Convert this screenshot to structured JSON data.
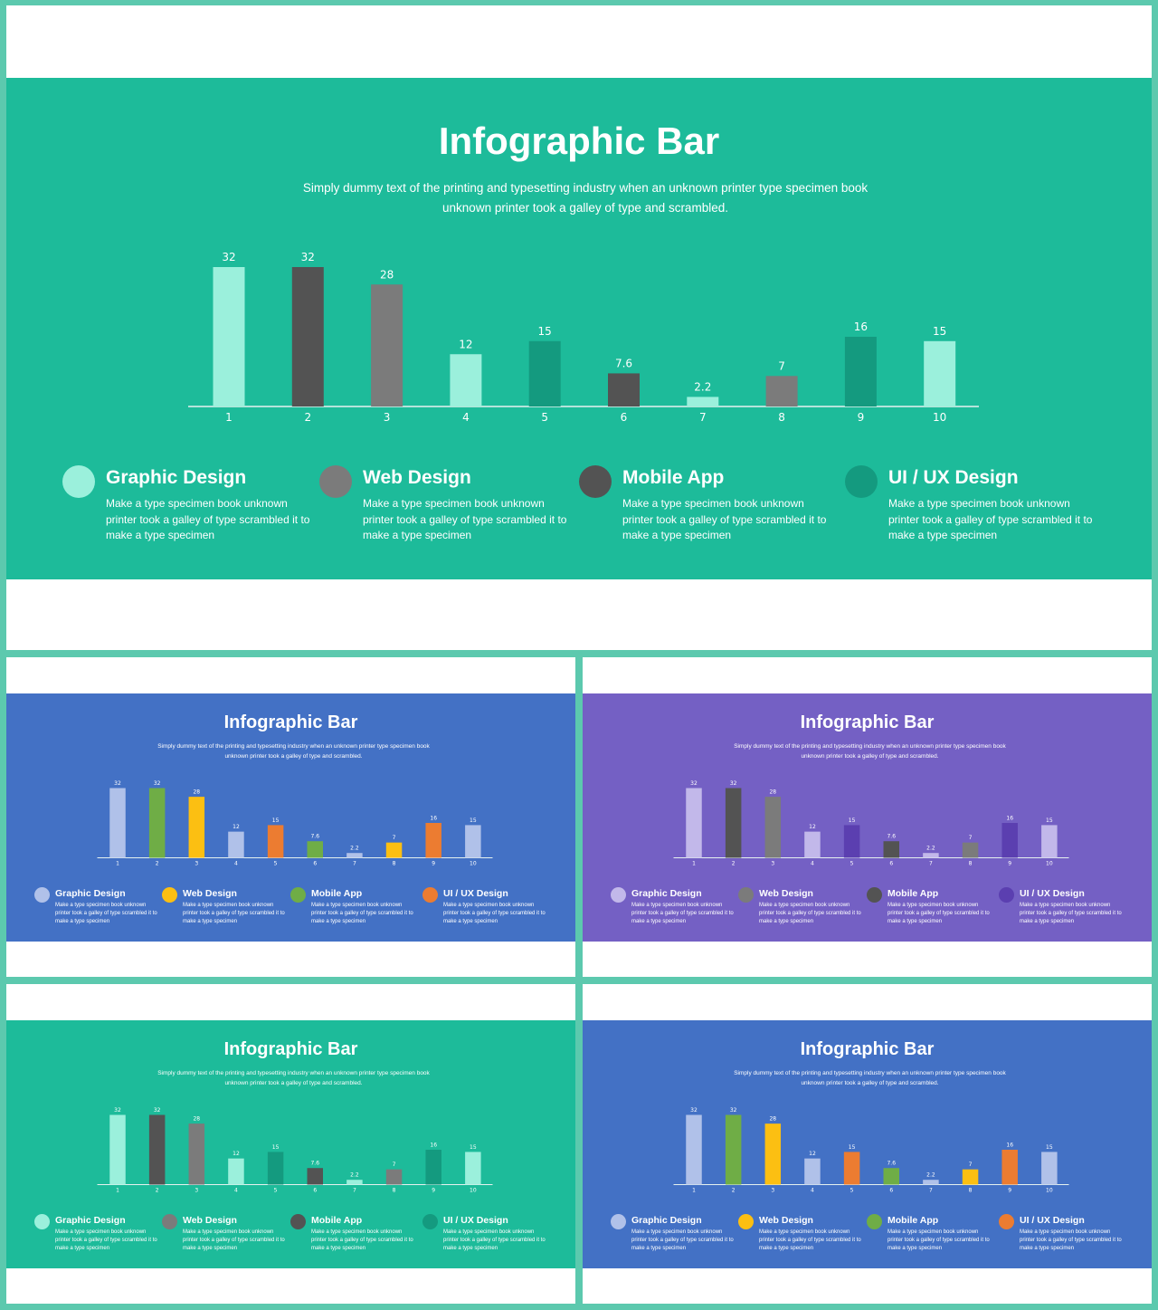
{
  "slides": [
    {
      "title": "Infographic Bar",
      "subtitle": "Simply dummy text of the printing and typesetting industry when an unknown printer type specimen book unknown printer took a galley of type and scrambled.",
      "background": "#1dbb9a",
      "legend": [
        {
          "title": "Graphic Design",
          "text": "Make a type specimen book unknown printer took a galley of type scrambled it to make a type specimen",
          "color": "#9bf0dc"
        },
        {
          "title": "Web Design",
          "text": "Make a type specimen book unknown printer took a galley of type scrambled it to make a type specimen",
          "color": "#7b7b7b"
        },
        {
          "title": "Mobile App",
          "text": "Make a type specimen book unknown printer took a galley of type scrambled it to make a type specimen",
          "color": "#535353"
        },
        {
          "title": "UI / UX Design",
          "text": "Make a type specimen book unknown printer took a galley of type scrambled it to make a type specimen",
          "color": "#149a7f"
        }
      ]
    },
    {
      "title": "Infographic Bar",
      "subtitle": "Simply dummy text of the printing and typesetting industry when an unknown printer type specimen book unknown printer took a galley of type and scrambled.",
      "background": "#4371c5",
      "legend": [
        {
          "title": "Graphic Design",
          "text": "Make a type specimen book unknown printer took a galley of type scrambled it to make a type specimen",
          "color": "#b0c1e9"
        },
        {
          "title": "Web Design",
          "text": "Make a type specimen book unknown printer took a galley of type scrambled it to make a type specimen",
          "color": "#fcbf12"
        },
        {
          "title": "Mobile App",
          "text": "Make a type specimen book unknown printer took a galley of type scrambled it to make a type specimen",
          "color": "#6fad46"
        },
        {
          "title": "UI / UX Design",
          "text": "Make a type specimen book unknown printer took a galley of type scrambled it to make a type specimen",
          "color": "#ec7c31"
        }
      ]
    },
    {
      "title": "Infographic Bar",
      "subtitle": "Simply dummy text of the printing and typesetting industry when an unknown printer type specimen book unknown printer took a galley of type and scrambled.",
      "background": "#7460c4",
      "legend": [
        {
          "title": "Graphic Design",
          "text": "Make a type specimen book unknown printer took a galley of type scrambled it to make a type specimen",
          "color": "#c2b8ea"
        },
        {
          "title": "Web Design",
          "text": "Make a type specimen book unknown printer took a galley of type scrambled it to make a type specimen",
          "color": "#7b7b7b"
        },
        {
          "title": "Mobile App",
          "text": "Make a type specimen book unknown printer took a galley of type scrambled it to make a type specimen",
          "color": "#535353"
        },
        {
          "title": "UI / UX Design",
          "text": "Make a type specimen book unknown printer took a galley of type scrambled it to make a type specimen",
          "color": "#5b3fb0"
        }
      ]
    },
    {
      "title": "Infographic Bar",
      "subtitle": "Simply dummy text of the printing and typesetting industry when an unknown printer type specimen book unknown printer took a galley of type and scrambled.",
      "background": "#1dbb9a",
      "legend": [
        {
          "title": "Graphic Design",
          "text": "Make a type specimen book unknown printer took a galley of type scrambled it to make a type specimen",
          "color": "#9bf0dc"
        },
        {
          "title": "Web Design",
          "text": "Make a type specimen book unknown printer took a galley of type scrambled it to make a type specimen",
          "color": "#7b7b7b"
        },
        {
          "title": "Mobile App",
          "text": "Make a type specimen book unknown printer took a galley of type scrambled it to make a type specimen",
          "color": "#535353"
        },
        {
          "title": "UI / UX Design",
          "text": "Make a type specimen book unknown printer took a galley of type scrambled it to make a type specimen",
          "color": "#149a7f"
        }
      ]
    },
    {
      "title": "Infographic Bar",
      "subtitle": "Simply dummy text of the printing and typesetting industry when an unknown printer type specimen book unknown printer took a galley of type and scrambled.",
      "background": "#4371c5",
      "legend": [
        {
          "title": "Graphic Design",
          "text": "Make a type specimen book unknown printer took a galley of type scrambled it to make a type specimen",
          "color": "#b0c1e9"
        },
        {
          "title": "Web Design",
          "text": "Make a type specimen book unknown printer took a galley of type scrambled it to make a type specimen",
          "color": "#fcbf12"
        },
        {
          "title": "Mobile App",
          "text": "Make a type specimen book unknown printer took a galley of type scrambled it to make a type specimen",
          "color": "#6fad46"
        },
        {
          "title": "UI / UX Design",
          "text": "Make a type specimen book unknown printer took a galley of type scrambled it to make a type specimen",
          "color": "#ec7c31"
        }
      ]
    }
  ],
  "chart_data": [
    {
      "type": "bar",
      "categories": [
        "1",
        "2",
        "3",
        "4",
        "5",
        "6",
        "7",
        "8",
        "9",
        "10"
      ],
      "values": [
        32,
        32,
        28,
        12,
        15,
        7.6,
        2.2,
        7,
        16,
        15
      ],
      "data_labels": [
        "32",
        "32",
        "28",
        "12",
        "15",
        "7.6",
        "2.2",
        "7",
        "16",
        "15"
      ],
      "colors": [
        "#9bf0dc",
        "#535353",
        "#7b7b7b",
        "#9bf0dc",
        "#149a7f",
        "#535353",
        "#9bf0dc",
        "#7b7b7b",
        "#149a7f",
        "#9bf0dc"
      ],
      "ylim": [
        0,
        32
      ],
      "grid": false
    },
    {
      "type": "bar",
      "categories": [
        "1",
        "2",
        "3",
        "4",
        "5",
        "6",
        "7",
        "8",
        "9",
        "10"
      ],
      "values": [
        32,
        32,
        28,
        12,
        15,
        7.6,
        2.2,
        7,
        16,
        15
      ],
      "data_labels": [
        "32",
        "32",
        "28",
        "12",
        "15",
        "7.6",
        "2.2",
        "7",
        "16",
        "15"
      ],
      "colors": [
        "#b0c1e9",
        "#6fad46",
        "#fcbf12",
        "#b0c1e9",
        "#ec7c31",
        "#6fad46",
        "#b0c1e9",
        "#fcbf12",
        "#ec7c31",
        "#b0c1e9"
      ],
      "ylim": [
        0,
        32
      ],
      "grid": false
    },
    {
      "type": "bar",
      "categories": [
        "1",
        "2",
        "3",
        "4",
        "5",
        "6",
        "7",
        "8",
        "9",
        "10"
      ],
      "values": [
        32,
        32,
        28,
        12,
        15,
        7.6,
        2.2,
        7,
        16,
        15
      ],
      "data_labels": [
        "32",
        "32",
        "28",
        "12",
        "15",
        "7.6",
        "2.2",
        "7",
        "16",
        "15"
      ],
      "colors": [
        "#c2b8ea",
        "#535353",
        "#7b7b7b",
        "#c2b8ea",
        "#5b3fb0",
        "#535353",
        "#c2b8ea",
        "#7b7b7b",
        "#5b3fb0",
        "#c2b8ea"
      ],
      "ylim": [
        0,
        32
      ],
      "grid": false
    },
    {
      "type": "bar",
      "categories": [
        "1",
        "2",
        "3",
        "4",
        "5",
        "6",
        "7",
        "8",
        "9",
        "10"
      ],
      "values": [
        32,
        32,
        28,
        12,
        15,
        7.6,
        2.2,
        7,
        16,
        15
      ],
      "data_labels": [
        "32",
        "32",
        "28",
        "12",
        "15",
        "7.6",
        "2.2",
        "7",
        "16",
        "15"
      ],
      "colors": [
        "#9bf0dc",
        "#535353",
        "#7b7b7b",
        "#9bf0dc",
        "#149a7f",
        "#535353",
        "#9bf0dc",
        "#7b7b7b",
        "#149a7f",
        "#9bf0dc"
      ],
      "ylim": [
        0,
        32
      ],
      "grid": false
    },
    {
      "type": "bar",
      "categories": [
        "1",
        "2",
        "3",
        "4",
        "5",
        "6",
        "7",
        "8",
        "9",
        "10"
      ],
      "values": [
        32,
        32,
        28,
        12,
        15,
        7.6,
        2.2,
        7,
        16,
        15
      ],
      "data_labels": [
        "32",
        "32",
        "28",
        "12",
        "15",
        "7.6",
        "2.2",
        "7",
        "16",
        "15"
      ],
      "colors": [
        "#b0c1e9",
        "#6fad46",
        "#fcbf12",
        "#b0c1e9",
        "#ec7c31",
        "#6fad46",
        "#b0c1e9",
        "#fcbf12",
        "#ec7c31",
        "#b0c1e9"
      ],
      "ylim": [
        0,
        32
      ],
      "grid": false
    }
  ]
}
